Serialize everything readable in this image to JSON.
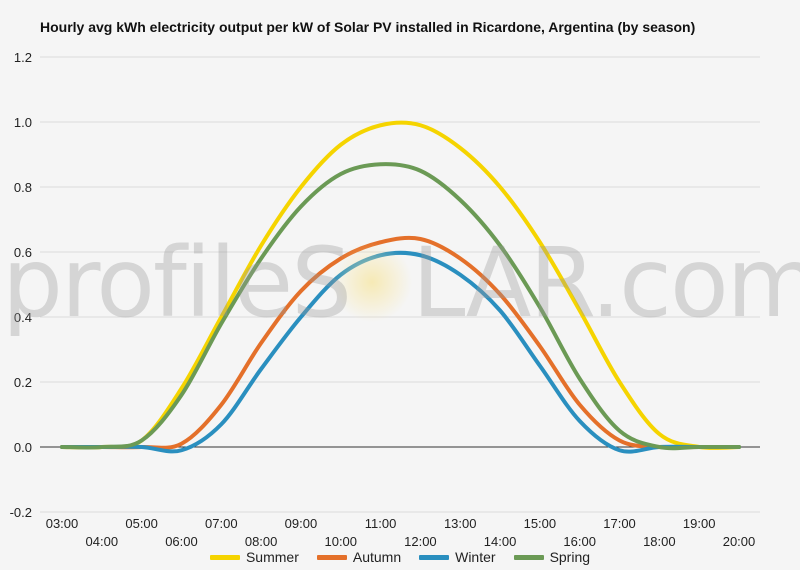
{
  "chart_data": {
    "type": "line",
    "title": "Hourly avg kWh electricity output per kW of Solar PV installed in Ricardone, Argentina (by season)",
    "xlabel": "",
    "ylabel": "",
    "ylim": [
      -0.2,
      1.2
    ],
    "yticks": [
      "-0.2",
      "0.0",
      "0.2",
      "0.4",
      "0.6",
      "0.8",
      "1.0",
      "1.2"
    ],
    "categories": [
      "03:00",
      "04:00",
      "05:00",
      "06:00",
      "07:00",
      "08:00",
      "09:00",
      "10:00",
      "11:00",
      "12:00",
      "13:00",
      "14:00",
      "15:00",
      "16:00",
      "17:00",
      "18:00",
      "19:00",
      "20:00"
    ],
    "grid": true,
    "legend_position": "bottom",
    "series": [
      {
        "name": "Summer",
        "color": "#f5d400",
        "values": [
          0,
          0,
          0.02,
          0.18,
          0.4,
          0.62,
          0.8,
          0.93,
          0.99,
          0.99,
          0.92,
          0.8,
          0.63,
          0.42,
          0.2,
          0.04,
          0.0,
          0
        ]
      },
      {
        "name": "Autumn",
        "color": "#e4702a",
        "values": [
          0,
          0,
          0.0,
          0.01,
          0.13,
          0.32,
          0.48,
          0.58,
          0.63,
          0.64,
          0.58,
          0.47,
          0.31,
          0.13,
          0.02,
          0.0,
          0.0,
          0
        ]
      },
      {
        "name": "Winter",
        "color": "#2a8fbf",
        "values": [
          0,
          0,
          0.0,
          -0.01,
          0.07,
          0.24,
          0.4,
          0.53,
          0.59,
          0.59,
          0.53,
          0.42,
          0.25,
          0.08,
          -0.01,
          0.0,
          0.0,
          0
        ]
      },
      {
        "name": "Spring",
        "color": "#6b9a55",
        "values": [
          0,
          0,
          0.02,
          0.16,
          0.38,
          0.58,
          0.74,
          0.84,
          0.87,
          0.85,
          0.76,
          0.62,
          0.43,
          0.21,
          0.05,
          0.0,
          0.0,
          0
        ]
      }
    ]
  },
  "watermark": {
    "text_left": "profileS",
    "text_right": "LAR.com"
  }
}
